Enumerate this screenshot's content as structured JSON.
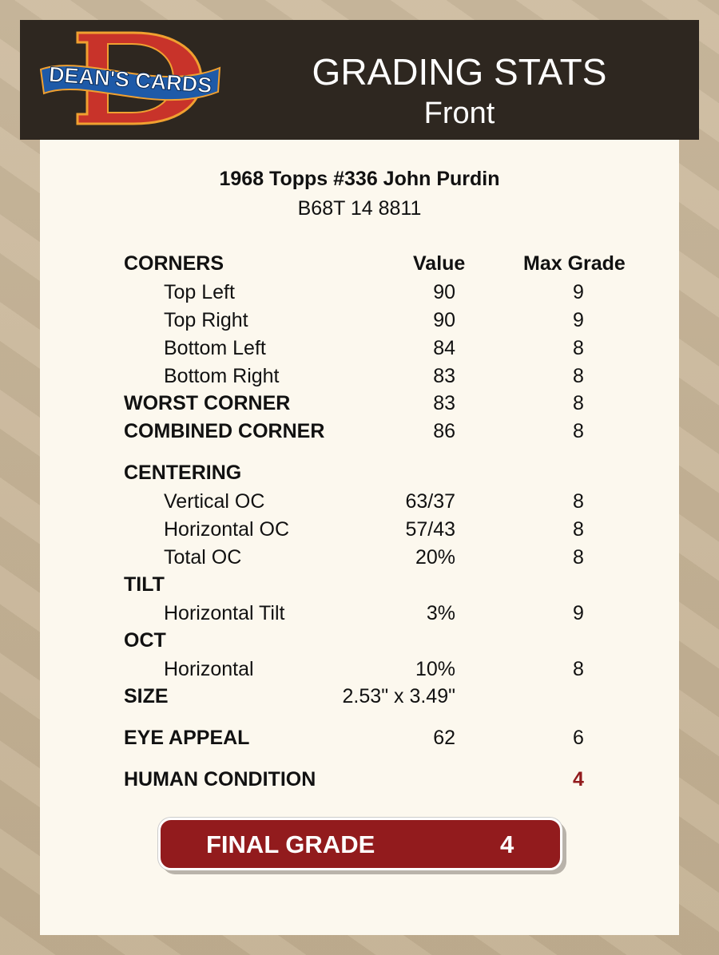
{
  "header": {
    "logo_text": "DEAN'S CARDS",
    "title": "GRADING STATS",
    "subtitle": "Front"
  },
  "card": {
    "name": "1968 Topps #336 John Purdin",
    "cert": "B68T 14 8811"
  },
  "columns": {
    "value": "Value",
    "max_grade": "Max Grade"
  },
  "rows": [
    {
      "type": "h",
      "label": "CORNERS",
      "value": "",
      "max": ""
    },
    {
      "type": "s",
      "label": "Top Left",
      "value": "90",
      "max": "9"
    },
    {
      "type": "s",
      "label": "Top Right",
      "value": "90",
      "max": "9"
    },
    {
      "type": "s",
      "label": "Bottom Left",
      "value": "84",
      "max": "8"
    },
    {
      "type": "s",
      "label": "Bottom Right",
      "value": "83",
      "max": "8"
    },
    {
      "type": "h",
      "label": "WORST CORNER",
      "value": "83",
      "max": "8"
    },
    {
      "type": "h",
      "label": "COMBINED CORNER",
      "value": "86",
      "max": "8"
    },
    {
      "type": "h",
      "label": "CENTERING",
      "value": "",
      "max": ""
    },
    {
      "type": "s",
      "label": "Vertical OC",
      "value": "63/37",
      "max": "8"
    },
    {
      "type": "s",
      "label": "Horizontal OC",
      "value": "57/43",
      "max": "8"
    },
    {
      "type": "s",
      "label": "Total OC",
      "value": "20%",
      "max": "8"
    },
    {
      "type": "h",
      "label": "TILT",
      "value": "",
      "max": ""
    },
    {
      "type": "s",
      "label": "Horizontal Tilt",
      "value": "3%",
      "max": "9"
    },
    {
      "type": "h",
      "label": "OCT",
      "value": "",
      "max": ""
    },
    {
      "type": "s",
      "label": "Horizontal",
      "value": "10%",
      "max": "8"
    },
    {
      "type": "h",
      "label": "SIZE",
      "value": "2.53\" x 3.49\"",
      "max": ""
    },
    {
      "type": "h",
      "label": "EYE APPEAL",
      "value": "62",
      "max": "6"
    },
    {
      "type": "h",
      "label": "HUMAN CONDITION",
      "value": "",
      "max": "4",
      "max_color": "#921b1d"
    }
  ],
  "final_grade": {
    "label": "FINAL GRADE",
    "value": "4"
  },
  "colors": {
    "accent": "#921b1d",
    "header_bg": "#2e2720",
    "panel_bg": "#fcf8ee"
  }
}
